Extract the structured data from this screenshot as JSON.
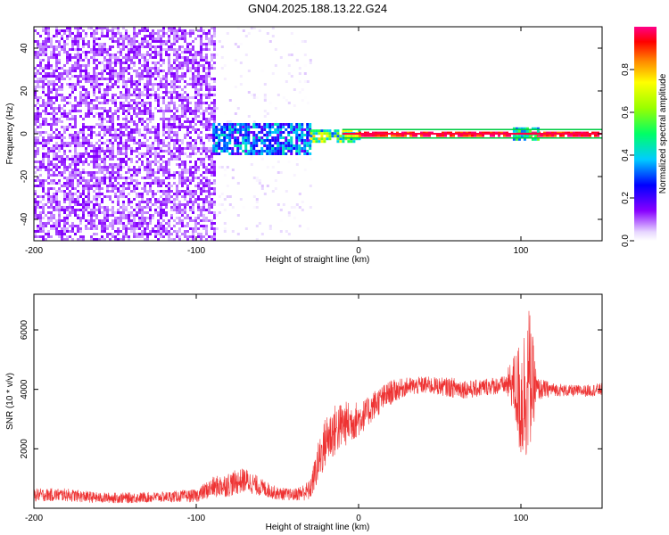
{
  "title": "GN04.2025.188.13.22.G24",
  "colors": {
    "snr_line": "#ee3333",
    "axis": "#000000",
    "colorbar": [
      "#ffffff",
      "#e8d8ff",
      "#8800ff",
      "#0000ff",
      "#00ccff",
      "#00ff66",
      "#99ff00",
      "#ffff00",
      "#ff8800",
      "#ff0000",
      "#ff0088"
    ]
  },
  "chart_data": [
    {
      "type": "heatmap",
      "xlabel": "Height of straight line (km)",
      "ylabel": "Frequency (Hz)",
      "xlim": [
        -200,
        150
      ],
      "ylim": [
        -50,
        50
      ],
      "xticks": [
        -200,
        -100,
        0,
        100
      ],
      "xtick_labels": [
        "-200",
        "-100",
        "0",
        "100"
      ],
      "yticks": [
        -40,
        -20,
        0,
        20,
        40
      ],
      "ytick_labels": [
        "-40",
        "-20",
        "0",
        "20",
        "40"
      ],
      "colorbar": {
        "label": "Normalized spectral amplitude",
        "range": [
          0,
          1
        ],
        "ticks": [
          0.0,
          0.2,
          0.4,
          0.6,
          0.8
        ],
        "tick_labels": [
          "0.0",
          "0.2",
          "0.4",
          "0.6",
          "0.8"
        ]
      },
      "regions": [
        {
          "x_range": [
            -200,
            -88
          ],
          "freq_range": [
            -50,
            50
          ],
          "amplitude": [
            0.05,
            0.15
          ],
          "description": "noise"
        },
        {
          "x_range": [
            -88,
            -30
          ],
          "freq_range": [
            -50,
            50
          ],
          "amplitude": [
            0.0,
            0.05
          ]
        },
        {
          "x_range": [
            -90,
            -30
          ],
          "freq_range": [
            -10,
            5
          ],
          "amplitude": [
            0.15,
            0.45
          ]
        },
        {
          "x_range": [
            -30,
            0
          ],
          "freq_range": [
            -4,
            2
          ],
          "amplitude": [
            0.3,
            0.8
          ]
        },
        {
          "x_range": [
            0,
            150
          ],
          "freq_range": [
            -1,
            1
          ],
          "amplitude": [
            0.85,
            1.0
          ]
        },
        {
          "x_range": [
            95,
            110
          ],
          "freq_range": [
            -3,
            3
          ],
          "amplitude": [
            0.3,
            0.6
          ]
        }
      ]
    },
    {
      "type": "line",
      "xlabel": "Height of straight line (km)",
      "ylabel": "SNR (10 * v/v)",
      "xlim": [
        -200,
        150
      ],
      "ylim": [
        0,
        7200
      ],
      "xticks": [
        -200,
        -100,
        0,
        100
      ],
      "xtick_labels": [
        "-200",
        "-100",
        "0",
        "100"
      ],
      "yticks": [
        2000,
        4000,
        6000
      ],
      "ytick_labels": [
        "2000",
        "4000",
        "6000"
      ],
      "series": [
        {
          "x": [
            -200,
            -180,
            -160,
            -140,
            -120,
            -100,
            -90,
            -80,
            -70,
            -60,
            -50,
            -40,
            -30,
            -25,
            -20,
            -15,
            -10,
            -5,
            0,
            5,
            10,
            15,
            20,
            25,
            30,
            35,
            40,
            50,
            60,
            70,
            80,
            90,
            95,
            100,
            105,
            110,
            120,
            130,
            140,
            150
          ],
          "values": [
            450,
            450,
            350,
            350,
            380,
            420,
            700,
            800,
            950,
            700,
            500,
            450,
            600,
            1500,
            2300,
            2600,
            2800,
            2900,
            3000,
            3200,
            3500,
            3700,
            3900,
            4000,
            4100,
            4100,
            4150,
            4100,
            4050,
            4000,
            4100,
            4150,
            4200,
            3600,
            4300,
            4000,
            4000,
            3950,
            3950,
            4000
          ],
          "spread": [
            220,
            220,
            180,
            180,
            180,
            220,
            350,
            420,
            420,
            300,
            220,
            200,
            350,
            700,
            900,
            900,
            800,
            700,
            600,
            500,
            500,
            450,
            420,
            350,
            300,
            300,
            300,
            300,
            350,
            300,
            300,
            300,
            900,
            2200,
            2600,
            400,
            220,
            200,
            200,
            220
          ]
        }
      ]
    }
  ]
}
